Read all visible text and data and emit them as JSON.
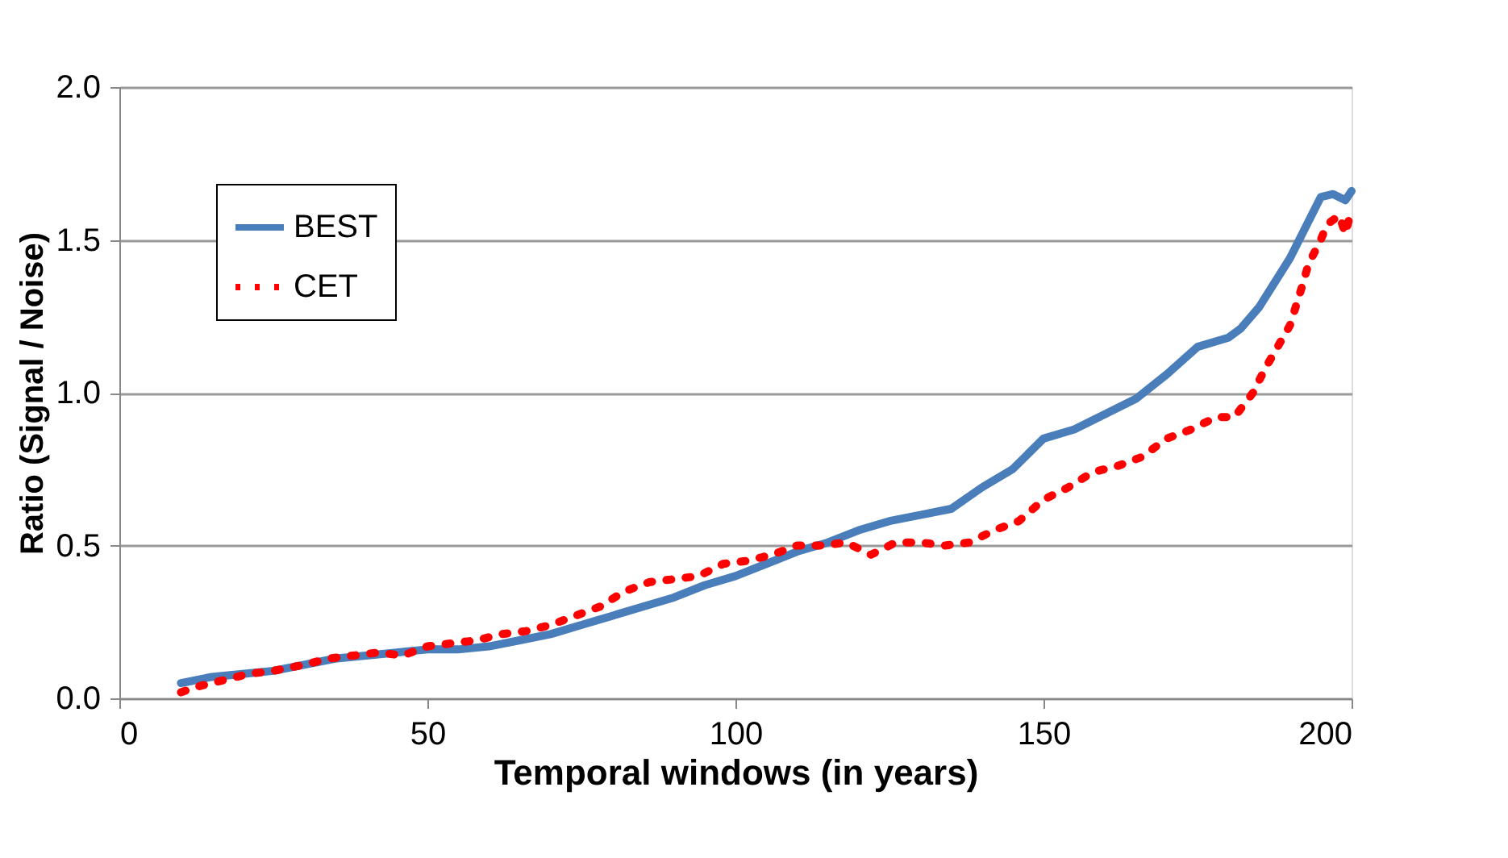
{
  "chart_data": {
    "type": "line",
    "xlabel": "Temporal windows (in years)",
    "ylabel": "Ratio (Signal / Noise)",
    "xlim": [
      0,
      200
    ],
    "xticks": [
      0,
      50,
      100,
      150,
      200
    ],
    "ylim": [
      0,
      2.0
    ],
    "yticks": [
      {
        "value": 0,
        "label": "0.0"
      },
      {
        "value": 0.5,
        "label": "0.5"
      },
      {
        "value": 1.0,
        "label": "1.0"
      },
      {
        "value": 1.5,
        "label": "1.5"
      },
      {
        "value": 2.0,
        "label": "2.0"
      }
    ],
    "grid": "y",
    "legend": "top left",
    "marker": "none",
    "series": [
      {
        "name": "BEST",
        "color": "#4a7ebb",
        "line_style": "solid",
        "x": [
          10,
          15,
          20,
          25,
          30,
          35,
          40,
          45,
          50,
          55,
          60,
          65,
          70,
          75,
          80,
          85,
          90,
          95,
          100,
          105,
          110,
          115,
          120,
          125,
          130,
          135,
          140,
          145,
          150,
          155,
          160,
          165,
          170,
          175,
          180,
          182,
          185,
          190,
          195,
          197,
          199,
          200
        ],
        "values": [
          0.05,
          0.07,
          0.08,
          0.09,
          0.11,
          0.13,
          0.14,
          0.15,
          0.16,
          0.16,
          0.17,
          0.19,
          0.21,
          0.24,
          0.27,
          0.3,
          0.33,
          0.37,
          0.4,
          0.44,
          0.48,
          0.51,
          0.55,
          0.58,
          0.6,
          0.62,
          0.69,
          0.75,
          0.85,
          0.88,
          0.93,
          0.98,
          1.06,
          1.15,
          1.18,
          1.21,
          1.28,
          1.44,
          1.64,
          1.65,
          1.63,
          1.66
        ]
      },
      {
        "name": "CET",
        "color": "#ff0000",
        "line_style": "dotted",
        "x": [
          10,
          13,
          17,
          21,
          25,
          30,
          34,
          38,
          42,
          46,
          50,
          54,
          58,
          62,
          66,
          70,
          74,
          78,
          82,
          86,
          90,
          94,
          98,
          102,
          106,
          110,
          114,
          118,
          122,
          126,
          130,
          134,
          138,
          142,
          146,
          150,
          154,
          158,
          162,
          166,
          170,
          174,
          178,
          181,
          184,
          186,
          188,
          190,
          192,
          193,
          195,
          196,
          198,
          199,
          200
        ],
        "values": [
          0.02,
          0.04,
          0.06,
          0.08,
          0.09,
          0.11,
          0.13,
          0.14,
          0.15,
          0.14,
          0.17,
          0.18,
          0.19,
          0.21,
          0.22,
          0.24,
          0.27,
          0.3,
          0.35,
          0.38,
          0.39,
          0.4,
          0.44,
          0.45,
          0.47,
          0.5,
          0.5,
          0.51,
          0.47,
          0.51,
          0.51,
          0.5,
          0.51,
          0.55,
          0.58,
          0.65,
          0.69,
          0.74,
          0.76,
          0.79,
          0.85,
          0.88,
          0.92,
          0.92,
          1.0,
          1.08,
          1.15,
          1.22,
          1.35,
          1.42,
          1.5,
          1.55,
          1.58,
          1.52,
          1.6
        ]
      }
    ]
  }
}
